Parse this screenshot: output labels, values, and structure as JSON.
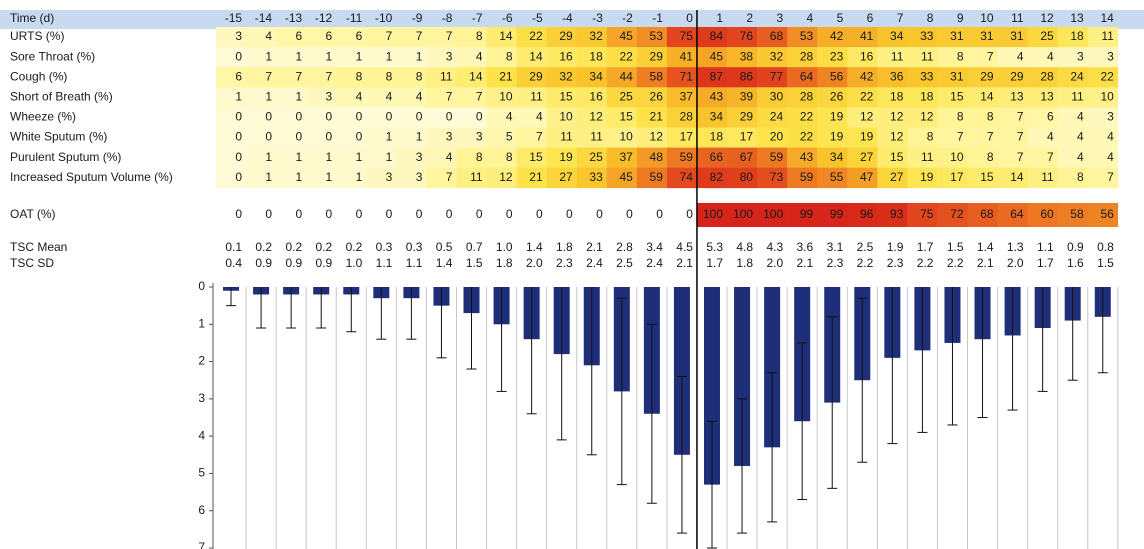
{
  "table": {
    "header": {
      "label": "Time (d)",
      "days": [
        -15,
        -14,
        -13,
        -12,
        -11,
        -10,
        -9,
        -8,
        -7,
        -6,
        -5,
        -4,
        -3,
        -2,
        -1,
        0,
        1,
        2,
        3,
        4,
        5,
        6,
        7,
        8,
        9,
        10,
        11,
        12,
        13,
        14
      ]
    },
    "symptoms": [
      {
        "label": "URTS (%)",
        "values": [
          3,
          4,
          6,
          6,
          6,
          7,
          7,
          7,
          8,
          14,
          22,
          29,
          32,
          45,
          53,
          75,
          84,
          76,
          68,
          53,
          42,
          41,
          34,
          33,
          31,
          31,
          31,
          25,
          18,
          11
        ]
      },
      {
        "label": "Sore Throat (%)",
        "values": [
          0,
          1,
          1,
          1,
          1,
          1,
          1,
          3,
          4,
          8,
          14,
          16,
          18,
          22,
          29,
          41,
          45,
          38,
          32,
          28,
          23,
          16,
          11,
          11,
          8,
          7,
          4,
          4,
          3,
          3
        ]
      },
      {
        "label": "Cough (%)",
        "values": [
          6,
          7,
          7,
          7,
          8,
          8,
          8,
          11,
          14,
          21,
          29,
          32,
          34,
          44,
          58,
          71,
          87,
          86,
          77,
          64,
          56,
          42,
          36,
          33,
          31,
          29,
          29,
          28,
          24,
          22
        ]
      },
      {
        "label": "Short of Breath (%)",
        "values": [
          1,
          1,
          1,
          3,
          4,
          4,
          4,
          7,
          7,
          10,
          11,
          15,
          16,
          25,
          26,
          37,
          43,
          39,
          30,
          28,
          26,
          22,
          18,
          18,
          15,
          14,
          13,
          13,
          11,
          10
        ]
      },
      {
        "label": "Wheeze (%)",
        "values": [
          0,
          0,
          0,
          0,
          0,
          0,
          0,
          0,
          0,
          4,
          4,
          10,
          12,
          15,
          21,
          28,
          34,
          29,
          24,
          22,
          19,
          12,
          12,
          12,
          8,
          8,
          7,
          6,
          4,
          3
        ]
      },
      {
        "label": "White Sputum (%)",
        "values": [
          0,
          0,
          0,
          0,
          0,
          1,
          1,
          3,
          3,
          5,
          7,
          11,
          11,
          10,
          12,
          17,
          18,
          17,
          20,
          22,
          19,
          19,
          12,
          8,
          7,
          7,
          7,
          4,
          4,
          4
        ]
      },
      {
        "label": "Purulent Sputum (%)",
        "values": [
          0,
          1,
          1,
          1,
          1,
          1,
          3,
          4,
          8,
          8,
          15,
          19,
          25,
          37,
          48,
          59,
          66,
          67,
          59,
          43,
          34,
          27,
          15,
          11,
          10,
          8,
          7,
          7,
          4,
          4
        ]
      },
      {
        "label": "Increased Sputum Volume (%)",
        "values": [
          0,
          1,
          1,
          1,
          1,
          3,
          3,
          7,
          11,
          12,
          21,
          27,
          33,
          45,
          59,
          74,
          82,
          80,
          73,
          59,
          55,
          47,
          27,
          19,
          17,
          15,
          14,
          11,
          8,
          7
        ]
      }
    ],
    "oat": {
      "label": "OAT (%)",
      "values": [
        0,
        0,
        0,
        0,
        0,
        0,
        0,
        0,
        0,
        0,
        0,
        0,
        0,
        0,
        0,
        0,
        100,
        100,
        100,
        99,
        99,
        96,
        93,
        75,
        72,
        68,
        64,
        60,
        58,
        56
      ]
    },
    "tsc_mean": {
      "label": "TSC Mean",
      "values": [
        0.1,
        0.2,
        0.2,
        0.2,
        0.2,
        0.3,
        0.3,
        0.5,
        0.7,
        1.0,
        1.4,
        1.8,
        2.1,
        2.8,
        3.4,
        4.5,
        5.3,
        4.8,
        4.3,
        3.6,
        3.1,
        2.5,
        1.9,
        1.7,
        1.5,
        1.4,
        1.3,
        1.1,
        0.9,
        0.8
      ],
      "value_labels": [
        "0.1",
        "0.2",
        "0.2",
        "0.2",
        "0.2",
        "0.3",
        "0.3",
        "0.5",
        "0.7",
        "1.0",
        "1.4",
        "1.8",
        "2.1",
        "2.8",
        "3.4",
        "4.5",
        "5.3",
        "4.8",
        "4.3",
        "3.6",
        "3.1",
        "2.5",
        "1.9",
        "1.7",
        "1.5",
        "1.4",
        "1.3",
        "1.1",
        "0.9",
        "0.8"
      ]
    },
    "tsc_sd": {
      "label": "TSC SD",
      "values": [
        0.4,
        0.9,
        0.9,
        0.9,
        1.0,
        1.1,
        1.1,
        1.4,
        1.5,
        1.8,
        2.0,
        2.3,
        2.4,
        2.5,
        2.4,
        2.1,
        1.7,
        1.8,
        2.0,
        2.1,
        2.3,
        2.2,
        2.3,
        2.2,
        2.2,
        2.1,
        2.0,
        1.7,
        1.6,
        1.5
      ],
      "value_labels": [
        "0.4",
        "0.9",
        "0.9",
        "0.9",
        "1.0",
        "1.1",
        "1.1",
        "1.4",
        "1.5",
        "1.8",
        "2.0",
        "2.3",
        "2.4",
        "2.5",
        "2.4",
        "2.1",
        "1.7",
        "1.8",
        "2.0",
        "2.1",
        "2.3",
        "2.2",
        "2.3",
        "2.2",
        "2.2",
        "2.1",
        "2.0",
        "1.7",
        "1.6",
        "1.5"
      ]
    }
  },
  "bar_chart": {
    "type": "bar",
    "ylim": [
      0,
      7
    ],
    "yticks": [
      0,
      1,
      2,
      3,
      4,
      5,
      6,
      7
    ],
    "inverted": true,
    "grid": true,
    "color": "#1f2e78"
  }
}
